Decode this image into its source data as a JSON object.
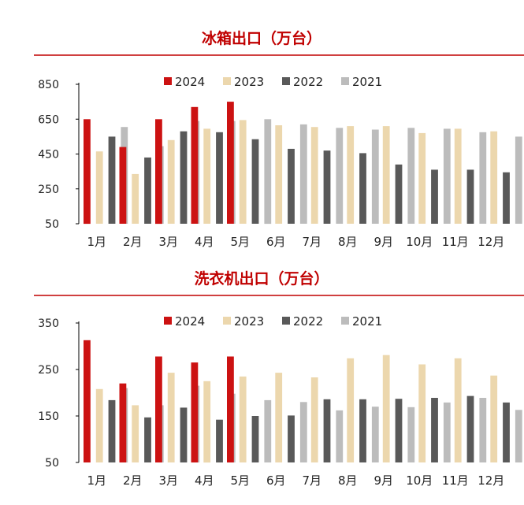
{
  "colors": {
    "title": "#c00000",
    "rule": "#c00000",
    "axis": "#000000",
    "text": "#222222",
    "series": [
      "#cc1212",
      "#ecd7ad",
      "#595959",
      "#bcbcbc"
    ]
  },
  "chart_data": [
    {
      "type": "bar",
      "title": "冰箱出口（万台）",
      "categories": [
        "1月",
        "2月",
        "3月",
        "4月",
        "5月",
        "6月",
        "7月",
        "8月",
        "9月",
        "10月",
        "11月",
        "12月"
      ],
      "yticks": [
        "850",
        "650",
        "450",
        "250",
        "50"
      ],
      "ylim": [
        50,
        850
      ],
      "legend_position": "top",
      "grid": false,
      "series": [
        {
          "name": "2024",
          "values": [
            650,
            490,
            650,
            720,
            750,
            null,
            null,
            null,
            null,
            null,
            null,
            null
          ]
        },
        {
          "name": "2023",
          "values": [
            465,
            335,
            530,
            595,
            645,
            615,
            605,
            610,
            610,
            570,
            595,
            580
          ]
        },
        {
          "name": "2022",
          "values": [
            550,
            430,
            580,
            575,
            535,
            480,
            470,
            455,
            390,
            360,
            360,
            345
          ]
        },
        {
          "name": "2021",
          "values": [
            605,
            495,
            640,
            640,
            650,
            620,
            600,
            590,
            600,
            595,
            575,
            550
          ]
        }
      ]
    },
    {
      "type": "bar",
      "title": "洗衣机出口（万台）",
      "categories": [
        "1月",
        "2月",
        "3月",
        "4月",
        "5月",
        "6月",
        "7月",
        "8月",
        "9月",
        "10月",
        "11月",
        "12月"
      ],
      "yticks": [
        "350",
        "250",
        "150",
        "50"
      ],
      "ylim": [
        50,
        350
      ],
      "legend_position": "top",
      "grid": false,
      "series": [
        {
          "name": "2024",
          "values": [
            313,
            220,
            278,
            265,
            278,
            null,
            null,
            null,
            null,
            null,
            null,
            null
          ]
        },
        {
          "name": "2023",
          "values": [
            208,
            173,
            243,
            225,
            235,
            243,
            233,
            274,
            281,
            261,
            274,
            237
          ]
        },
        {
          "name": "2022",
          "values": [
            184,
            147,
            168,
            142,
            150,
            151,
            186,
            186,
            187,
            189,
            193,
            179
          ]
        },
        {
          "name": "2021",
          "values": [
            210,
            173,
            215,
            198,
            184,
            180,
            162,
            170,
            169,
            179,
            189,
            163
          ]
        }
      ]
    }
  ]
}
